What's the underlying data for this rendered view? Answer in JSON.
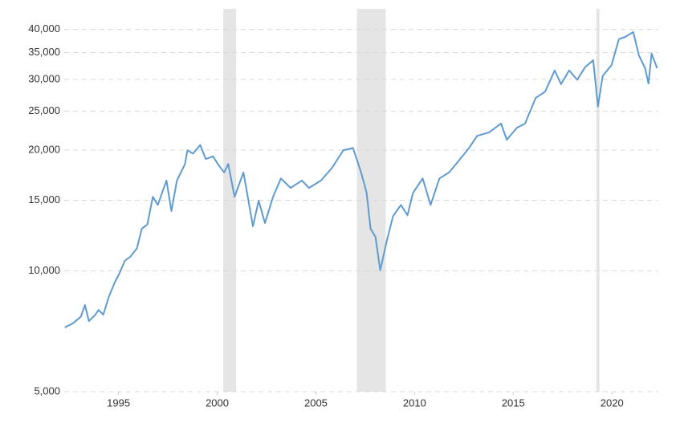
{
  "chart_data": {
    "type": "line",
    "log_scale": true,
    "grid": true,
    "xlim": [
      1992.25,
      2022.35
    ],
    "xticks": [
      1995,
      2000,
      2005,
      2010,
      2015,
      2020
    ],
    "ylim": [
      5000,
      45000
    ],
    "yticks": [
      {
        "value": 5000,
        "label": "5,000"
      },
      {
        "value": 10000,
        "label": "10,000"
      },
      {
        "value": 15000,
        "label": "15,000"
      },
      {
        "value": 20000,
        "label": "20,000"
      },
      {
        "value": 25000,
        "label": "25,000"
      },
      {
        "value": 30000,
        "label": "30,000"
      },
      {
        "value": 35000,
        "label": "35,000"
      },
      {
        "value": 40000,
        "label": "40,000"
      }
    ],
    "recessions": [
      [
        2000.31,
        2000.96
      ],
      [
        2007.08,
        2008.54
      ],
      [
        2019.21,
        2019.37
      ]
    ],
    "recession_color": "#e5e5e5",
    "series": [
      {
        "color": "#5f9bd0",
        "x": [
          1992.28,
          1992.69,
          1993.09,
          1993.3,
          1993.5,
          1993.82,
          1993.99,
          1994.23,
          1994.51,
          1994.8,
          1995.04,
          1995.32,
          1995.6,
          1995.93,
          1996.18,
          1996.46,
          1996.74,
          1996.99,
          1997.43,
          1997.68,
          1997.96,
          1998.37,
          1998.49,
          1998.77,
          1999.14,
          1999.42,
          1999.79,
          2000.03,
          2000.35,
          2000.56,
          2000.88,
          2001.33,
          2001.81,
          2002.1,
          2002.42,
          2002.83,
          2003.23,
          2003.72,
          2004.29,
          2004.65,
          2005.26,
          2005.83,
          2006.39,
          2006.88,
          2007.29,
          2007.57,
          2007.77,
          2008.02,
          2008.26,
          2008.59,
          2008.91,
          2009.31,
          2009.64,
          2009.92,
          2010.41,
          2010.81,
          2011.26,
          2011.75,
          2012.23,
          2012.76,
          2013.17,
          2013.78,
          2014.38,
          2014.67,
          2015.19,
          2015.6,
          2016.13,
          2016.61,
          2017.1,
          2017.42,
          2017.83,
          2018.24,
          2018.64,
          2019.05,
          2019.29,
          2019.53,
          2019.98,
          2020.35,
          2020.67,
          2021.08,
          2021.36,
          2021.68,
          2021.85,
          2022.01,
          2022.29
        ],
        "values": [
          7230,
          7400,
          7690,
          8220,
          7500,
          7770,
          7990,
          7780,
          8620,
          9340,
          9840,
          10600,
          10850,
          11380,
          12740,
          13050,
          15300,
          14600,
          16800,
          14100,
          16800,
          18470,
          19980,
          19600,
          20600,
          19000,
          19300,
          18470,
          17600,
          18470,
          15300,
          17600,
          12920,
          14970,
          13160,
          15300,
          17000,
          16100,
          16800,
          16100,
          16800,
          18100,
          19980,
          20250,
          17600,
          15650,
          12740,
          12150,
          10030,
          11870,
          13700,
          14600,
          13760,
          15650,
          17000,
          14600,
          17000,
          17600,
          18800,
          20250,
          21700,
          22150,
          23300,
          21230,
          22750,
          23300,
          26960,
          27960,
          31600,
          29200,
          31600,
          29950,
          32200,
          33500,
          25700,
          30600,
          32600,
          37800,
          38300,
          39400,
          34500,
          32000,
          29300,
          34800,
          32000
        ]
      }
    ]
  }
}
